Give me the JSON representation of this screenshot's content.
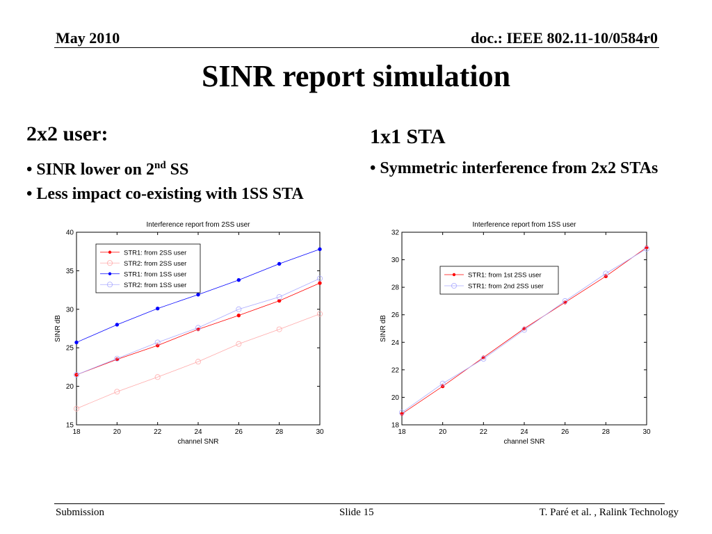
{
  "header": {
    "date": "May 2010",
    "doc": "doc.: IEEE 802.11-10/0584r0"
  },
  "title": "SINR report simulation",
  "left": {
    "heading": "2x2 user:",
    "bullet1_pre": "• SINR lower on 2",
    "bullet1_sup": "nd",
    "bullet1_post": " SS",
    "bullet2": "• Less impact co-existing with 1SS STA"
  },
  "right": {
    "heading": "1x1 STA",
    "bullet1": "• Symmetric interference from 2x2 STAs"
  },
  "footer": {
    "left": "Submission",
    "center": "Slide 15",
    "right": "T. Paré et al. , Ralink Technology"
  },
  "chart_data": [
    {
      "type": "line",
      "title": "Interference report from 2SS user",
      "xlabel": "channel SNR",
      "ylabel": "SINR dB",
      "xlim": [
        18,
        30
      ],
      "ylim": [
        15,
        40
      ],
      "xticks": [
        18,
        20,
        22,
        24,
        26,
        28,
        30
      ],
      "yticks": [
        15,
        20,
        25,
        30,
        35,
        40
      ],
      "x": [
        18,
        20,
        22,
        24,
        26,
        28,
        30
      ],
      "legend_position": "top-left",
      "series": [
        {
          "name": "STR1: from 2SS user",
          "color": "#ff0000",
          "marker": "dot",
          "values": [
            21.5,
            23.5,
            25.3,
            27.4,
            29.2,
            31.1,
            33.4
          ]
        },
        {
          "name": "STR2: from 2SS user",
          "color": "#ffaaaa",
          "marker": "circle",
          "values": [
            17.1,
            19.3,
            21.2,
            23.2,
            25.5,
            27.4,
            29.4
          ]
        },
        {
          "name": "STR1: from 1SS user",
          "color": "#0000ff",
          "marker": "dot",
          "values": [
            25.7,
            28.0,
            30.1,
            31.9,
            33.8,
            35.9,
            37.8
          ]
        },
        {
          "name": "STR2: from 1SS user",
          "color": "#aaaaff",
          "marker": "circle",
          "values": [
            21.5,
            23.6,
            25.7,
            27.6,
            30.0,
            31.6,
            34.0
          ]
        }
      ]
    },
    {
      "type": "line",
      "title": "Interference report from 1SS user",
      "xlabel": "channel SNR",
      "ylabel": "SINR dB",
      "xlim": [
        18,
        30
      ],
      "ylim": [
        18,
        32
      ],
      "xticks": [
        18,
        20,
        22,
        24,
        26,
        28,
        30
      ],
      "yticks": [
        18,
        20,
        22,
        24,
        26,
        28,
        30,
        32
      ],
      "x": [
        18,
        20,
        22,
        24,
        26,
        28,
        30
      ],
      "legend_position": "top-left",
      "series": [
        {
          "name": "STR1: from 1st 2SS user",
          "color": "#ff0000",
          "marker": "dot",
          "values": [
            18.8,
            20.8,
            22.9,
            25.0,
            26.9,
            28.8,
            30.9
          ]
        },
        {
          "name": "STR1: from 2nd 2SS user",
          "color": "#aaaaff",
          "marker": "circle",
          "values": [
            18.9,
            21.0,
            22.8,
            24.9,
            27.0,
            29.0,
            30.8
          ]
        }
      ]
    }
  ]
}
